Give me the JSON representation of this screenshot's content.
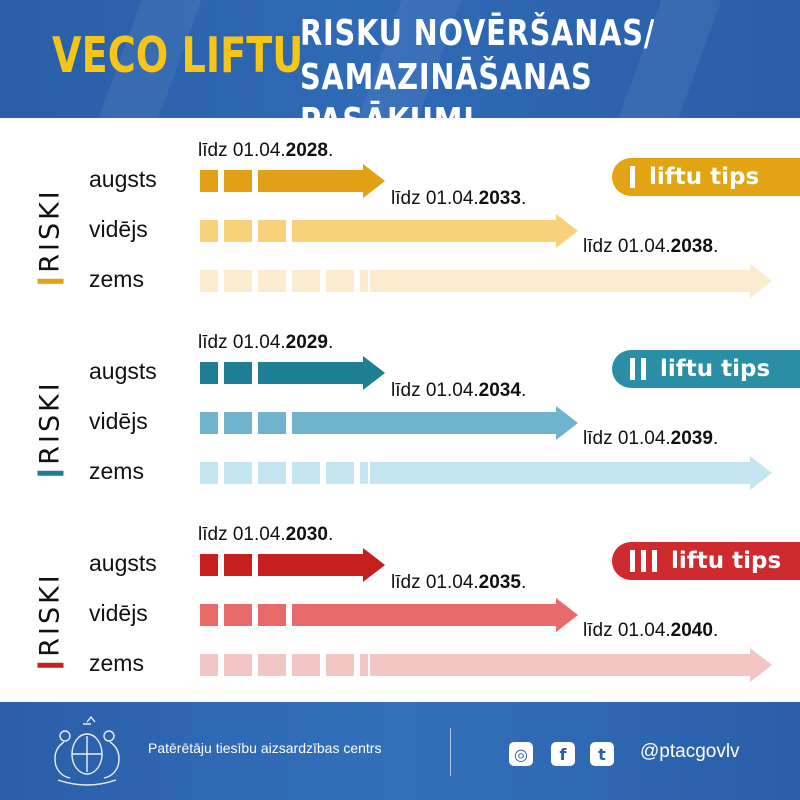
{
  "header": {
    "title_left": "VECO LIFTU",
    "title_right_line1": "RISKU NOVĒRŠANAS/",
    "title_right_line2": "SAMAZINĀŠANAS PASĀKUMI"
  },
  "sections": [
    {
      "riski_label": "RISKI",
      "color_dark": "#e1a016",
      "color_mid": "#f7d27a",
      "color_light": "#fbecd0",
      "badge_color": "#e3a414",
      "badge_text": "liftu tips",
      "badge_numeral_count": 1,
      "levels": [
        {
          "label": "augsts",
          "date_prefix": "līdz 01.04.",
          "date_year": "2028",
          "date_suffix": "."
        },
        {
          "label": "vidējs",
          "date_prefix": "līdz 01.04.",
          "date_year": "2033",
          "date_suffix": "."
        },
        {
          "label": "zems",
          "date_prefix": "līdz 01.04.",
          "date_year": "2038",
          "date_suffix": "."
        }
      ]
    },
    {
      "riski_label": "RISKI",
      "color_dark": "#1e7f94",
      "color_mid": "#6fb3cd",
      "color_light": "#c3e6f0",
      "badge_color": "#2a8fa5",
      "badge_text": "liftu tips",
      "badge_numeral_count": 2,
      "levels": [
        {
          "label": "augsts",
          "date_prefix": "līdz 01.04.",
          "date_year": "2029",
          "date_suffix": "."
        },
        {
          "label": "vidējs",
          "date_prefix": "līdz 01.04.",
          "date_year": "2034",
          "date_suffix": "."
        },
        {
          "label": "zems",
          "date_prefix": "līdz 01.04.",
          "date_year": "2039",
          "date_suffix": "."
        }
      ]
    },
    {
      "riski_label": "RISKI",
      "color_dark": "#c51f20",
      "color_mid": "#e86a6a",
      "color_light": "#f3c6c6",
      "badge_color": "#cf2a2d",
      "badge_text": "liftu tips",
      "badge_numeral_count": 3,
      "levels": [
        {
          "label": "augsts",
          "date_prefix": "līdz 01.04.",
          "date_year": "2030",
          "date_suffix": "."
        },
        {
          "label": "vidējs",
          "date_prefix": "līdz 01.04.",
          "date_year": "2035",
          "date_suffix": "."
        },
        {
          "label": "zems",
          "date_prefix": "līdz 01.04.",
          "date_year": "2040",
          "date_suffix": "."
        }
      ]
    }
  ],
  "footer": {
    "org_name": "Patērētāju tiesību aizsardzības centrs",
    "social": [
      {
        "name": "instagram-icon",
        "glyph": "◎"
      },
      {
        "name": "facebook-icon",
        "glyph": "f"
      },
      {
        "name": "twitter-icon",
        "glyph": "t"
      }
    ],
    "handle": "@ptacgovlv"
  }
}
